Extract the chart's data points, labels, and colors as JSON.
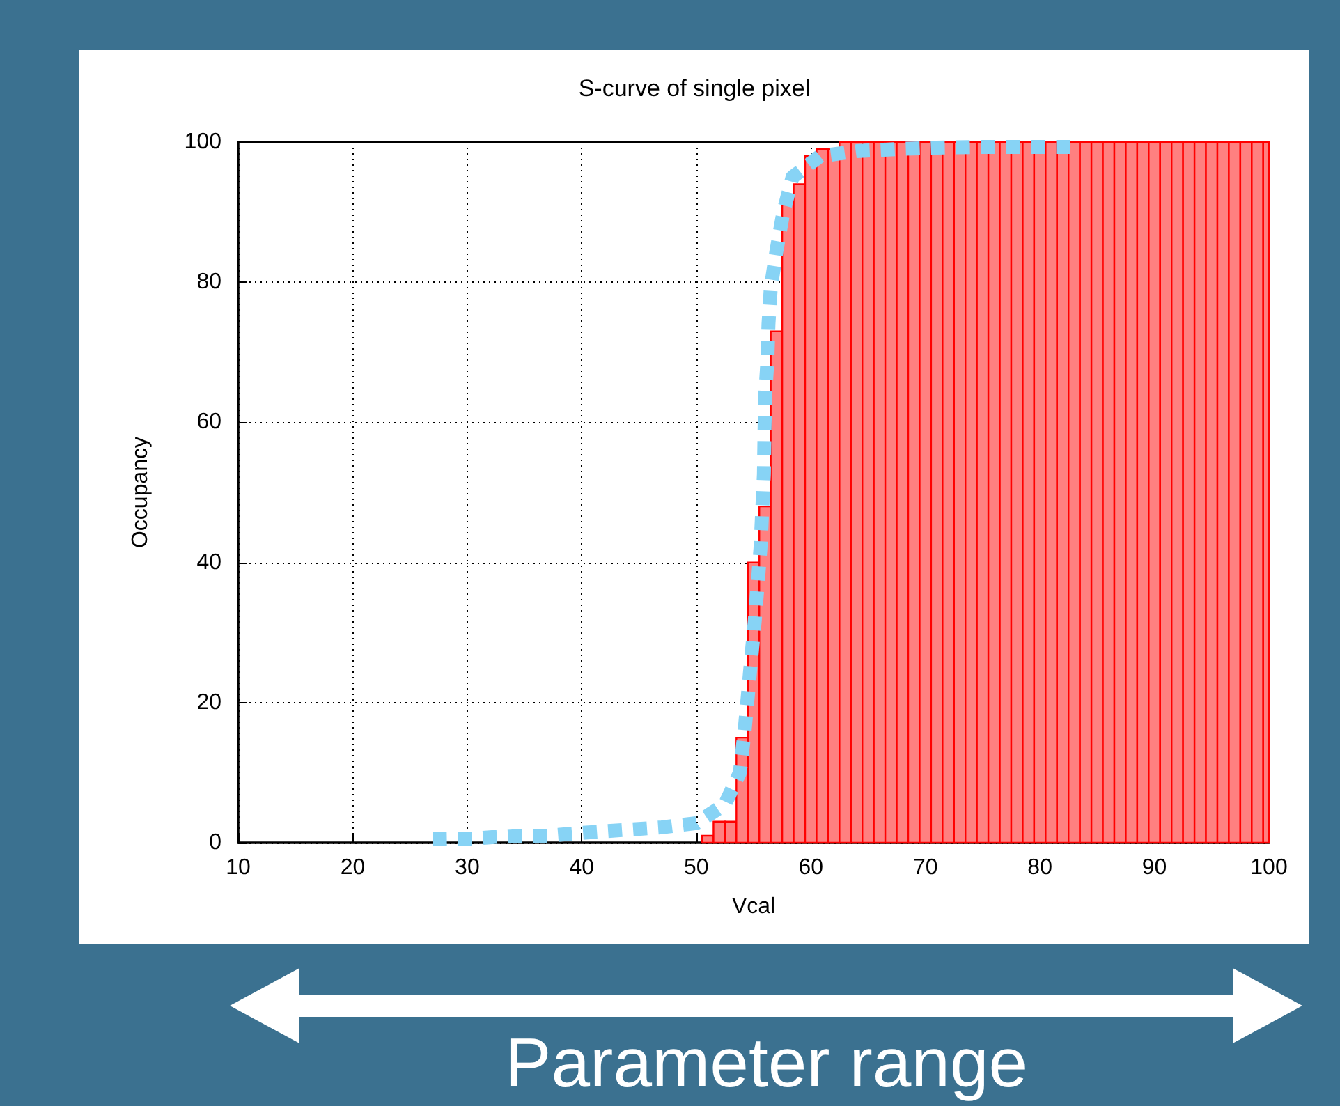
{
  "chart_data": {
    "type": "histogram",
    "title": "S-curve of single pixel",
    "xlabel": "Vcal",
    "ylabel": "Occupancy",
    "xlim": [
      10,
      100
    ],
    "xticks": [
      10,
      20,
      30,
      40,
      50,
      60,
      70,
      80,
      90,
      100
    ],
    "ylim": [
      0,
      100
    ],
    "yticks": [
      0,
      20,
      40,
      60,
      80,
      100
    ],
    "grid": true,
    "annotations": [
      "Parameter range"
    ],
    "series": [
      {
        "color": "#ff8080",
        "bins": [
          50.5,
          51.5,
          52.5,
          53.5,
          54.5,
          55.5,
          56.5,
          57.5,
          58.5,
          59.5,
          60.5,
          61.5,
          62.5,
          63.5,
          64.5,
          65.5,
          66.5,
          67.5,
          68.5,
          69.5,
          70.5,
          71.5,
          72.5,
          73.5,
          74.5,
          75.5,
          76.5,
          77.5,
          78.5,
          79.5,
          80.5,
          81.5,
          82.5,
          83.5,
          84.5,
          85.5,
          86.5,
          87.5,
          88.5,
          89.5,
          90.5,
          91.5,
          92.5,
          93.5,
          94.5,
          95.5,
          96.5,
          97.5,
          98.5,
          99.5,
          100
        ],
        "values": [
          1,
          3,
          3,
          15,
          40,
          48,
          73,
          92,
          94,
          98,
          99,
          99,
          100,
          100,
          100,
          100,
          100,
          100,
          100,
          100,
          100,
          100,
          100,
          100,
          100,
          100,
          100,
          100,
          100,
          100,
          100,
          100,
          100,
          100,
          100,
          100,
          100,
          100,
          100,
          100,
          100,
          100,
          100,
          100,
          100,
          100,
          100,
          100,
          100,
          100
        ]
      },
      {
        "type": "line",
        "color": "#87d3f5",
        "line_style": "dotted",
        "marker": "none",
        "x": [
          27,
          30.5,
          34,
          37,
          40,
          43.5,
          47,
          50,
          52.5,
          53.8,
          54.2,
          54.5,
          54.8,
          55.1,
          55.6,
          55.9,
          56,
          56.2,
          56.3,
          56.5,
          57,
          57.6,
          58.4,
          60.8,
          64,
          67.5,
          71,
          74.5,
          78,
          81,
          83.5
        ],
        "values": [
          0.5,
          0.6,
          1,
          1,
          1.4,
          1.8,
          2.2,
          2.8,
          5.5,
          10,
          15.7,
          21,
          26.4,
          31.6,
          42,
          52.6,
          63.4,
          68.6,
          74,
          79.2,
          84.5,
          90,
          95,
          98,
          98.7,
          99,
          99.2,
          99.3,
          99.3,
          99.3,
          99.3
        ]
      }
    ]
  }
}
